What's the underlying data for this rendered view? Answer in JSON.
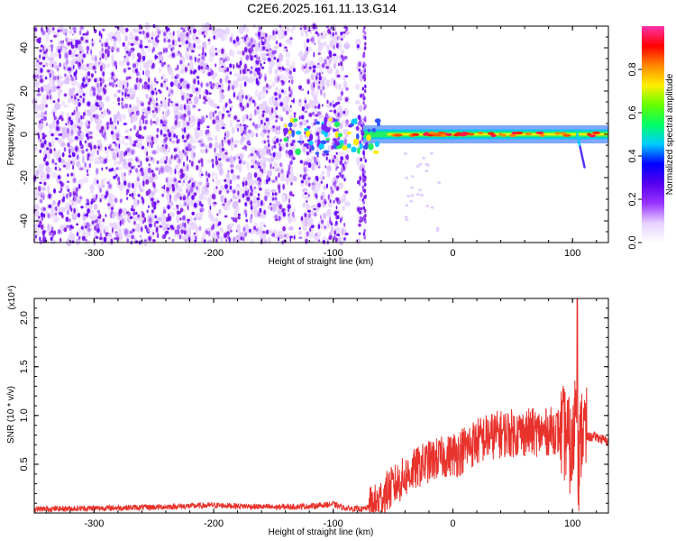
{
  "title": "C2E6.2025.161.11.13.G14",
  "chart_data": [
    {
      "type": "heatmap",
      "xlabel": "Height of straight line (km)",
      "ylabel": "Frequency (Hz)",
      "xlim": [
        -350,
        130
      ],
      "ylim": [
        -50,
        50
      ],
      "x_ticks": [
        -300,
        -200,
        -100,
        0,
        100
      ],
      "y_ticks": [
        -40,
        -20,
        0,
        20,
        40
      ],
      "x_tick_labels": [
        "-300",
        "-200",
        "-100",
        "0",
        "100"
      ],
      "y_tick_labels": [
        "-40",
        "-20",
        "0",
        "20",
        "40"
      ],
      "colorbar": {
        "label": "Normalized spectral amplitude",
        "range": [
          0.0,
          1.0
        ],
        "ticks": [
          0.0,
          0.2,
          0.4,
          0.6,
          0.8
        ],
        "tick_labels": [
          "0.0",
          "0.2",
          "0.4",
          "0.6",
          "0.8"
        ],
        "colors": [
          "#ffffff",
          "#e6d0ff",
          "#9933ff",
          "#5500ee",
          "#0000ff",
          "#00ccff",
          "#00ff66",
          "#66ff00",
          "#ffee00",
          "#ff8800",
          "#ff0000",
          "#ff33aa"
        ]
      },
      "noise_region_x": [
        -350,
        -75
      ],
      "gaps_x": [
        [
          -132,
          -128
        ],
        [
          -88,
          -80
        ]
      ],
      "band_start_x": -75,
      "band_center_hz": 0,
      "band_halfwidth_hz": 3
    },
    {
      "type": "line",
      "xlabel": "Height of straight line (km)",
      "ylabel": "SNR (10 * v/v)",
      "y_multiplier": "(x10⁴)",
      "xlim": [
        -350,
        130
      ],
      "ylim": [
        0,
        2.2
      ],
      "x_ticks": [
        -300,
        -200,
        -100,
        0,
        100
      ],
      "y_ticks": [
        0.5,
        1.0,
        1.5,
        2.0
      ],
      "x_tick_labels": [
        "-300",
        "-200",
        "-100",
        "0",
        "100"
      ],
      "y_tick_labels": [
        "0.5",
        "1.0",
        "1.5",
        "2.0"
      ],
      "color": "#e8322c",
      "series": [
        {
          "x": [
            -350,
            -300,
            -250,
            -200,
            -150,
            -120,
            -100,
            -90,
            -75,
            -65,
            -55,
            -45,
            -35,
            -25,
            -15,
            -5,
            5,
            15,
            25,
            35,
            45,
            55,
            65,
            75,
            85,
            95,
            100,
            103,
            105,
            108,
            112,
            120,
            130
          ],
          "y": [
            0.04,
            0.05,
            0.06,
            0.08,
            0.06,
            0.07,
            0.09,
            0.05,
            0.04,
            0.08,
            0.22,
            0.32,
            0.42,
            0.5,
            0.55,
            0.58,
            0.62,
            0.7,
            0.76,
            0.8,
            0.82,
            0.82,
            0.83,
            0.82,
            0.85,
            0.8,
            0.55,
            1.3,
            0.45,
            0.9,
            0.78,
            0.78,
            0.73
          ]
        }
      ]
    }
  ]
}
